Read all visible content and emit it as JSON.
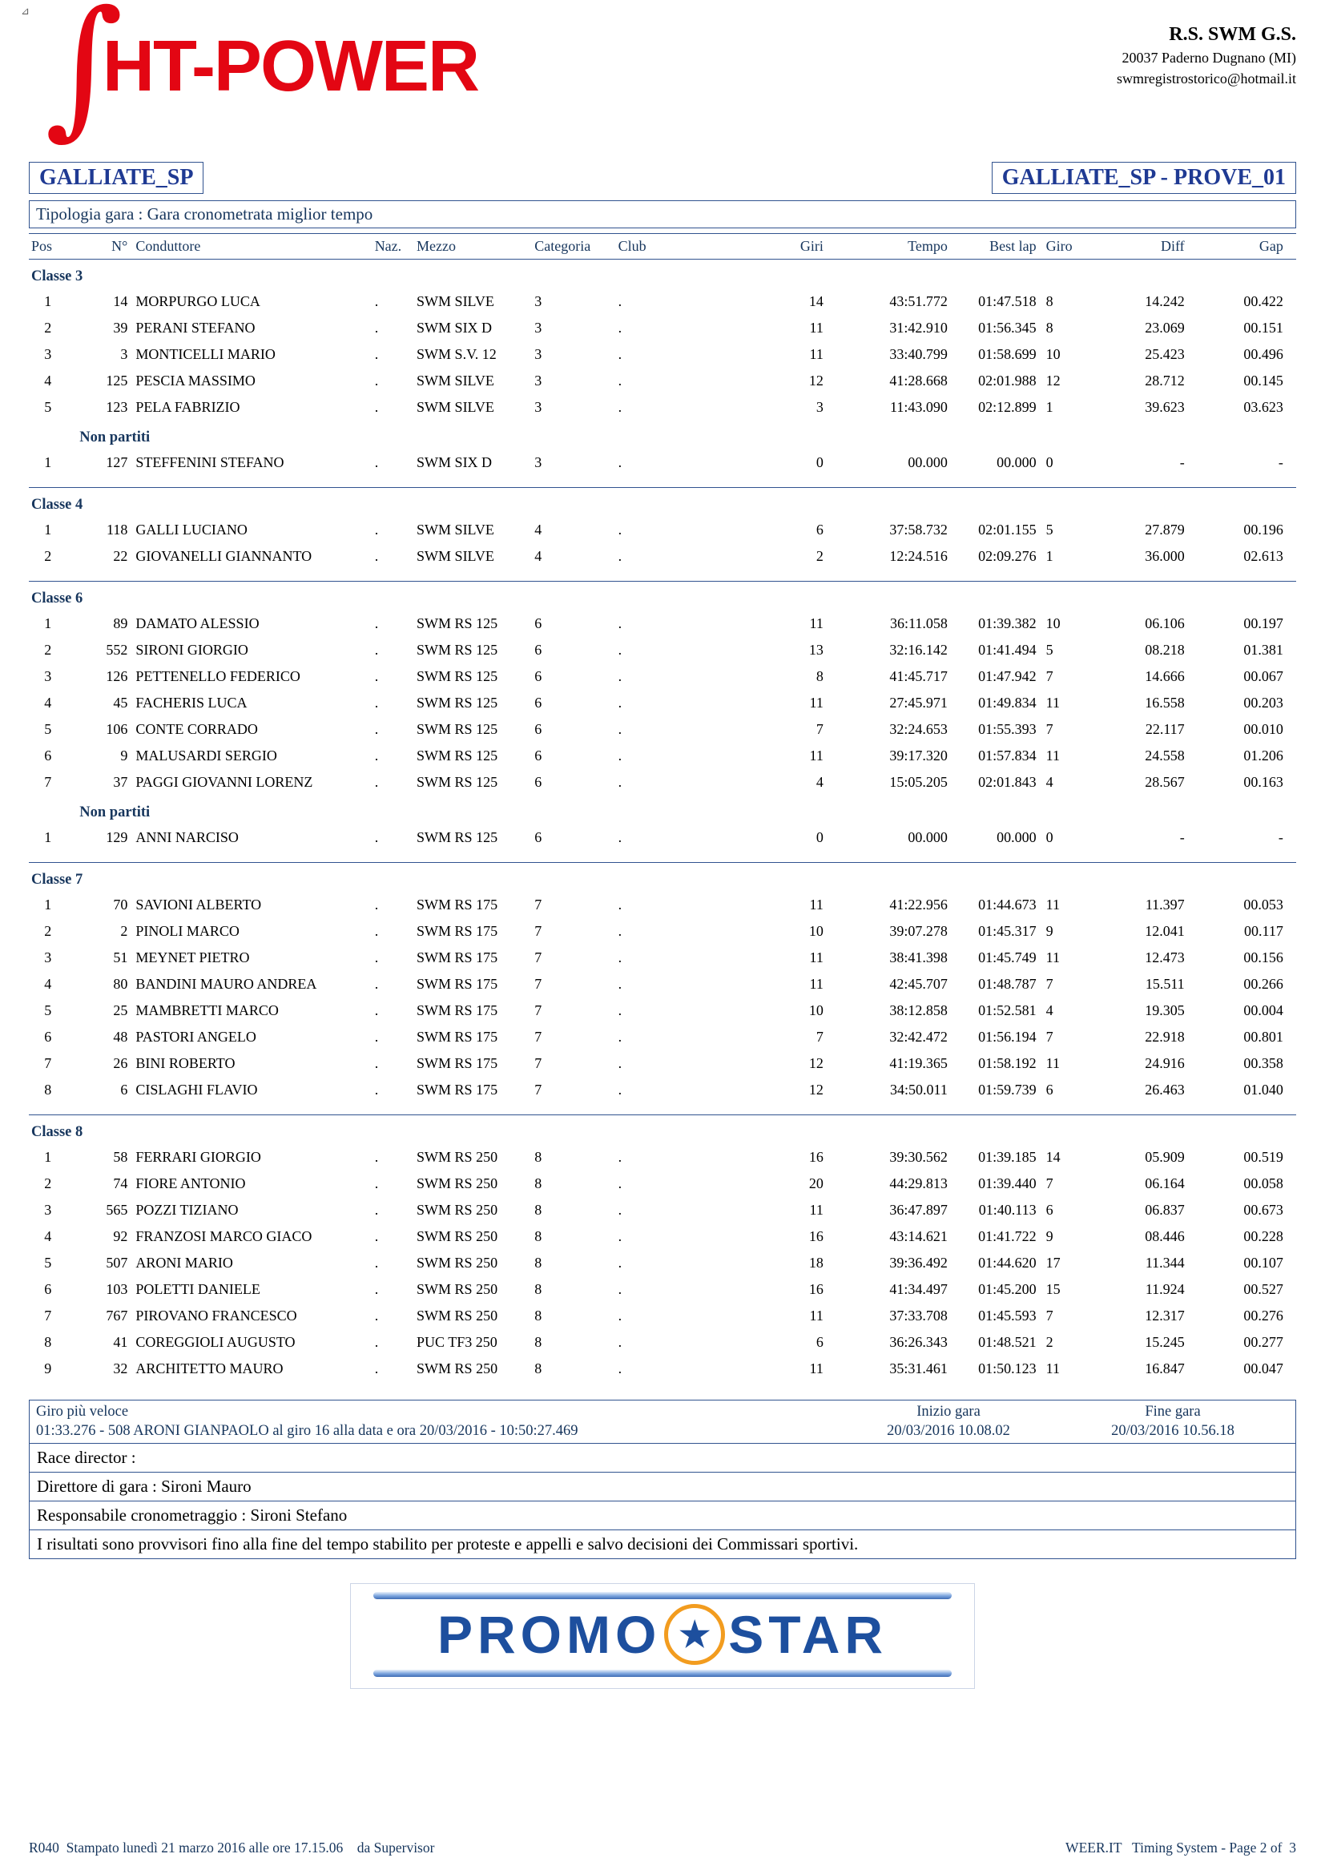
{
  "artifact": "⊿",
  "logo": {
    "glyph": "∫",
    "text": "HT-POWER"
  },
  "org": {
    "name": "R.S. SWM G.S.",
    "address": "20037 Paderno Dugnano (MI)",
    "email": "swmregistrostorico@hotmail.it"
  },
  "titles": {
    "left": "GALLIATE_SP",
    "right": "GALLIATE_SP - PROVE_01"
  },
  "subtitle": "Tipologia gara : Gara cronometrata  miglior tempo",
  "colors": {
    "accent_red": "#e30613",
    "navy": "#17365d",
    "title_blue": "#1f3a93",
    "border_blue": "#31538f",
    "promo_blue": "#1d4f9e",
    "promo_orange": "#f29c1f"
  },
  "table": {
    "columns": [
      "Pos",
      "N°",
      "Conduttore",
      "Naz.",
      "Mezzo",
      "Categoria",
      "Club",
      "Giri",
      "Tempo",
      "Best lap",
      "Giro",
      "Diff",
      "Gap"
    ],
    "sections": [
      {
        "label": "Classe 3",
        "rows": [
          [
            "1",
            "14",
            "MORPURGO LUCA",
            ".",
            "SWM SILVE",
            "3",
            ".",
            "14",
            "43:51.772",
            "01:47.518",
            "8",
            "14.242",
            "00.422"
          ],
          [
            "2",
            "39",
            "PERANI STEFANO",
            ".",
            "SWM SIX D",
            "3",
            ".",
            "11",
            "31:42.910",
            "01:56.345",
            "8",
            "23.069",
            "00.151"
          ],
          [
            "3",
            "3",
            "MONTICELLI MARIO",
            ".",
            "SWM S.V. 12",
            "3",
            ".",
            "11",
            "33:40.799",
            "01:58.699",
            "10",
            "25.423",
            "00.496"
          ],
          [
            "4",
            "125",
            "PESCIA MASSIMO",
            ".",
            "SWM SILVE",
            "3",
            ".",
            "12",
            "41:28.668",
            "02:01.988",
            "12",
            "28.712",
            "00.145"
          ],
          [
            "5",
            "123",
            "PELA FABRIZIO",
            ".",
            "SWM SILVE",
            "3",
            ".",
            "3",
            "11:43.090",
            "02:12.899",
            "1",
            "39.623",
            "03.623"
          ]
        ],
        "non_partiti": {
          "label": "Non partiti",
          "rows": [
            [
              "1",
              "127",
              "STEFFENINI STEFANO",
              ".",
              "SWM SIX D",
              "3",
              ".",
              "0",
              "00.000",
              "00.000",
              "0",
              "-",
              "-"
            ]
          ]
        }
      },
      {
        "label": "Classe 4",
        "rows": [
          [
            "1",
            "118",
            "GALLI LUCIANO",
            ".",
            "SWM SILVE",
            "4",
            ".",
            "6",
            "37:58.732",
            "02:01.155",
            "5",
            "27.879",
            "00.196"
          ],
          [
            "2",
            "22",
            "GIOVANELLI GIANNANTO",
            ".",
            "SWM SILVE",
            "4",
            ".",
            "2",
            "12:24.516",
            "02:09.276",
            "1",
            "36.000",
            "02.613"
          ]
        ]
      },
      {
        "label": "Classe 6",
        "rows": [
          [
            "1",
            "89",
            "DAMATO ALESSIO",
            ".",
            "SWM RS 125",
            "6",
            ".",
            "11",
            "36:11.058",
            "01:39.382",
            "10",
            "06.106",
            "00.197"
          ],
          [
            "2",
            "552",
            "SIRONI GIORGIO",
            ".",
            "SWM RS 125",
            "6",
            ".",
            "13",
            "32:16.142",
            "01:41.494",
            "5",
            "08.218",
            "01.381"
          ],
          [
            "3",
            "126",
            "PETTENELLO FEDERICO",
            ".",
            "SWM RS 125",
            "6",
            ".",
            "8",
            "41:45.717",
            "01:47.942",
            "7",
            "14.666",
            "00.067"
          ],
          [
            "4",
            "45",
            "FACHERIS LUCA",
            ".",
            "SWM RS 125",
            "6",
            ".",
            "11",
            "27:45.971",
            "01:49.834",
            "11",
            "16.558",
            "00.203"
          ],
          [
            "5",
            "106",
            "CONTE CORRADO",
            ".",
            "SWM RS 125",
            "6",
            ".",
            "7",
            "32:24.653",
            "01:55.393",
            "7",
            "22.117",
            "00.010"
          ],
          [
            "6",
            "9",
            "MALUSARDI SERGIO",
            ".",
            "SWM RS 125",
            "6",
            ".",
            "11",
            "39:17.320",
            "01:57.834",
            "11",
            "24.558",
            "01.206"
          ],
          [
            "7",
            "37",
            "PAGGI GIOVANNI LORENZ",
            ".",
            "SWM RS 125",
            "6",
            ".",
            "4",
            "15:05.205",
            "02:01.843",
            "4",
            "28.567",
            "00.163"
          ]
        ],
        "non_partiti": {
          "label": "Non partiti",
          "rows": [
            [
              "1",
              "129",
              "ANNI NARCISO",
              ".",
              "SWM RS 125",
              "6",
              ".",
              "0",
              "00.000",
              "00.000",
              "0",
              "-",
              "-"
            ]
          ]
        }
      },
      {
        "label": "Classe 7",
        "rows": [
          [
            "1",
            "70",
            "SAVIONI ALBERTO",
            ".",
            "SWM RS 175",
            "7",
            ".",
            "11",
            "41:22.956",
            "01:44.673",
            "11",
            "11.397",
            "00.053"
          ],
          [
            "2",
            "2",
            "PINOLI MARCO",
            ".",
            "SWM RS 175",
            "7",
            ".",
            "10",
            "39:07.278",
            "01:45.317",
            "9",
            "12.041",
            "00.117"
          ],
          [
            "3",
            "51",
            "MEYNET PIETRO",
            ".",
            "SWM RS 175",
            "7",
            ".",
            "11",
            "38:41.398",
            "01:45.749",
            "11",
            "12.473",
            "00.156"
          ],
          [
            "4",
            "80",
            "BANDINI MAURO ANDREA",
            ".",
            "SWM RS 175",
            "7",
            ".",
            "11",
            "42:45.707",
            "01:48.787",
            "7",
            "15.511",
            "00.266"
          ],
          [
            "5",
            "25",
            "MAMBRETTI MARCO",
            ".",
            "SWM RS 175",
            "7",
            ".",
            "10",
            "38:12.858",
            "01:52.581",
            "4",
            "19.305",
            "00.004"
          ],
          [
            "6",
            "48",
            "PASTORI ANGELO",
            ".",
            "SWM RS 175",
            "7",
            ".",
            "7",
            "32:42.472",
            "01:56.194",
            "7",
            "22.918",
            "00.801"
          ],
          [
            "7",
            "26",
            "BINI ROBERTO",
            ".",
            "SWM RS 175",
            "7",
            ".",
            "12",
            "41:19.365",
            "01:58.192",
            "11",
            "24.916",
            "00.358"
          ],
          [
            "8",
            "6",
            "CISLAGHI FLAVIO",
            ".",
            "SWM RS 175",
            "7",
            ".",
            "12",
            "34:50.011",
            "01:59.739",
            "6",
            "26.463",
            "01.040"
          ]
        ]
      },
      {
        "label": "Classe 8",
        "rows": [
          [
            "1",
            "58",
            "FERRARI GIORGIO",
            ".",
            "SWM RS 250",
            "8",
            ".",
            "16",
            "39:30.562",
            "01:39.185",
            "14",
            "05.909",
            "00.519"
          ],
          [
            "2",
            "74",
            "FIORE ANTONIO",
            ".",
            "SWM RS 250",
            "8",
            ".",
            "20",
            "44:29.813",
            "01:39.440",
            "7",
            "06.164",
            "00.058"
          ],
          [
            "3",
            "565",
            "POZZI TIZIANO",
            ".",
            "SWM RS 250",
            "8",
            ".",
            "11",
            "36:47.897",
            "01:40.113",
            "6",
            "06.837",
            "00.673"
          ],
          [
            "4",
            "92",
            "FRANZOSI MARCO GIACO",
            ".",
            "SWM RS 250",
            "8",
            ".",
            "16",
            "43:14.621",
            "01:41.722",
            "9",
            "08.446",
            "00.228"
          ],
          [
            "5",
            "507",
            "ARONI MARIO",
            ".",
            "SWM RS 250",
            "8",
            ".",
            "18",
            "39:36.492",
            "01:44.620",
            "17",
            "11.344",
            "00.107"
          ],
          [
            "6",
            "103",
            "POLETTI DANIELE",
            ".",
            "SWM RS 250",
            "8",
            ".",
            "16",
            "41:34.497",
            "01:45.200",
            "15",
            "11.924",
            "00.527"
          ],
          [
            "7",
            "767",
            "PIROVANO FRANCESCO",
            ".",
            "SWM RS 250",
            "8",
            ".",
            "11",
            "37:33.708",
            "01:45.593",
            "7",
            "12.317",
            "00.276"
          ],
          [
            "8",
            "41",
            "COREGGIOLI AUGUSTO",
            ".",
            "PUC TF3 250",
            "8",
            ".",
            "6",
            "36:26.343",
            "01:48.521",
            "2",
            "15.245",
            "00.277"
          ],
          [
            "9",
            "32",
            "ARCHITETTO MAURO",
            ".",
            "SWM RS 250",
            "8",
            ".",
            "11",
            "35:31.461",
            "01:50.123",
            "11",
            "16.847",
            "00.047"
          ]
        ]
      }
    ]
  },
  "summary": {
    "fastest_label": "Giro più veloce",
    "fastest_value": "01:33.276 - 508 ARONI GIANPAOLO  al giro 16 alla data e ora 20/03/2016 - 10:50:27.469",
    "start_label": "Inizio gara",
    "start_value": "20/03/2016 10.08.02",
    "end_label": "Fine gara",
    "end_value": "20/03/2016 10.56.18"
  },
  "officials": {
    "race_director": "Race director :",
    "direttore": "Direttore di gara : Sironi Mauro",
    "cronometraggio": "Responsabile cronometraggio : Sironi Stefano",
    "disclaimer": "I risultati sono provvisori fino alla fine del tempo stabilito per proteste e appelli e salvo decisioni dei Commissari sportivi."
  },
  "sponsor": {
    "left": "PROMO",
    "star": "★",
    "right": "STAR"
  },
  "footer": {
    "left": "R040  Stampato lunedì 21 marzo 2016 alle ore 17.15.06    da Supervisor",
    "right": "WEER.IT   Timing System - Page 2 of  3"
  }
}
